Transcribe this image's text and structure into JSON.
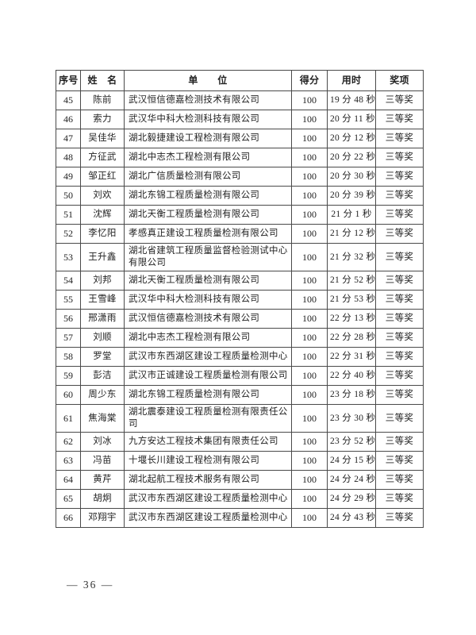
{
  "page": {
    "footer_page_number": "— 36 —"
  },
  "table": {
    "headers": [
      {
        "id": "no",
        "label": "序号"
      },
      {
        "id": "name",
        "label": "姓　名"
      },
      {
        "id": "org",
        "label": "单　　位"
      },
      {
        "id": "score",
        "label": "得分"
      },
      {
        "id": "time",
        "label": "用时"
      },
      {
        "id": "award",
        "label": "奖项"
      }
    ],
    "rows": [
      {
        "no": "45",
        "name": "陈前",
        "org": "武汉恒信德嘉检测技术有限公司",
        "score": "100",
        "time": "19 分 48 秒",
        "award": "三等奖"
      },
      {
        "no": "46",
        "name": "索力",
        "org": "武汉华中科大检测科技有限公司",
        "score": "100",
        "time": "20 分 11 秒",
        "award": "三等奖"
      },
      {
        "no": "47",
        "name": "吴佳华",
        "org": "湖北毅捷建设工程检测有限公司",
        "score": "100",
        "time": "20 分 12 秒",
        "award": "三等奖"
      },
      {
        "no": "48",
        "name": "方征武",
        "org": "湖北中志杰工程检测有限公司",
        "score": "100",
        "time": "20 分 22 秒",
        "award": "三等奖"
      },
      {
        "no": "49",
        "name": "邹正红",
        "org": "湖北广信质量检测有限公司",
        "score": "100",
        "time": "20 分 30 秒",
        "award": "三等奖"
      },
      {
        "no": "50",
        "name": "刘欢",
        "org": "湖北东锦工程质量检测有限公司",
        "score": "100",
        "time": "20 分 39 秒",
        "award": "三等奖"
      },
      {
        "no": "51",
        "name": "沈辉",
        "org": "湖北天衡工程质量检测有限公司",
        "score": "100",
        "time": "21 分 1 秒",
        "award": "三等奖"
      },
      {
        "no": "52",
        "name": "李忆阳",
        "org": "孝感真正建设工程质量检测有限公司",
        "score": "100",
        "time": "21 分 12 秒",
        "award": "三等奖"
      },
      {
        "no": "53",
        "name": "王升鑫",
        "org": "湖北省建筑工程质量监督检验测试中心有限公司",
        "score": "100",
        "time": "21 分 32 秒",
        "award": "三等奖"
      },
      {
        "no": "54",
        "name": "刘邦",
        "org": "湖北天衡工程质量检测有限公司",
        "score": "100",
        "time": "21 分 52 秒",
        "award": "三等奖"
      },
      {
        "no": "55",
        "name": "王雪峰",
        "org": "武汉华中科大检测科技有限公司",
        "score": "100",
        "time": "21 分 53 秒",
        "award": "三等奖"
      },
      {
        "no": "56",
        "name": "邢潇雨",
        "org": "武汉恒信德嘉检测技术有限公司",
        "score": "100",
        "time": "22 分 13 秒",
        "award": "三等奖"
      },
      {
        "no": "57",
        "name": "刘顺",
        "org": "湖北中志杰工程检测有限公司",
        "score": "100",
        "time": "22 分 28 秒",
        "award": "三等奖"
      },
      {
        "no": "58",
        "name": "罗堂",
        "org": "武汉市东西湖区建设工程质量检测中心",
        "score": "100",
        "time": "22 分 31 秒",
        "award": "三等奖"
      },
      {
        "no": "59",
        "name": "彭洁",
        "org": "武汉市正诚建设工程质量检测有限公司",
        "score": "100",
        "time": "22 分 40 秒",
        "award": "三等奖"
      },
      {
        "no": "60",
        "name": "周少东",
        "org": "湖北东锦工程质量检测有限公司",
        "score": "100",
        "time": "23 分 18 秒",
        "award": "三等奖"
      },
      {
        "no": "61",
        "name": "焦海棠",
        "org": "湖北震泰建设工程质量检测有限责任公司",
        "score": "100",
        "time": "23 分 30 秒",
        "award": "三等奖"
      },
      {
        "no": "62",
        "name": "刘冰",
        "org": "九方安达工程技术集团有限责任公司",
        "score": "100",
        "time": "23 分 52 秒",
        "award": "三等奖"
      },
      {
        "no": "63",
        "name": "冯苗",
        "org": "十堰长川建设工程检测有限公司",
        "score": "100",
        "time": "24 分 15 秒",
        "award": "三等奖"
      },
      {
        "no": "64",
        "name": "黄芹",
        "org": "湖北起航工程技术服务有限公司",
        "score": "100",
        "time": "24 分 24 秒",
        "award": "三等奖"
      },
      {
        "no": "65",
        "name": "胡炯",
        "org": "武汉市东西湖区建设工程质量检测中心",
        "score": "100",
        "time": "24 分 29 秒",
        "award": "三等奖"
      },
      {
        "no": "66",
        "name": "邓翔宇",
        "org": "武汉市东西湖区建设工程质量检测中心",
        "score": "100",
        "time": "24 分 43 秒",
        "award": "三等奖"
      }
    ]
  }
}
